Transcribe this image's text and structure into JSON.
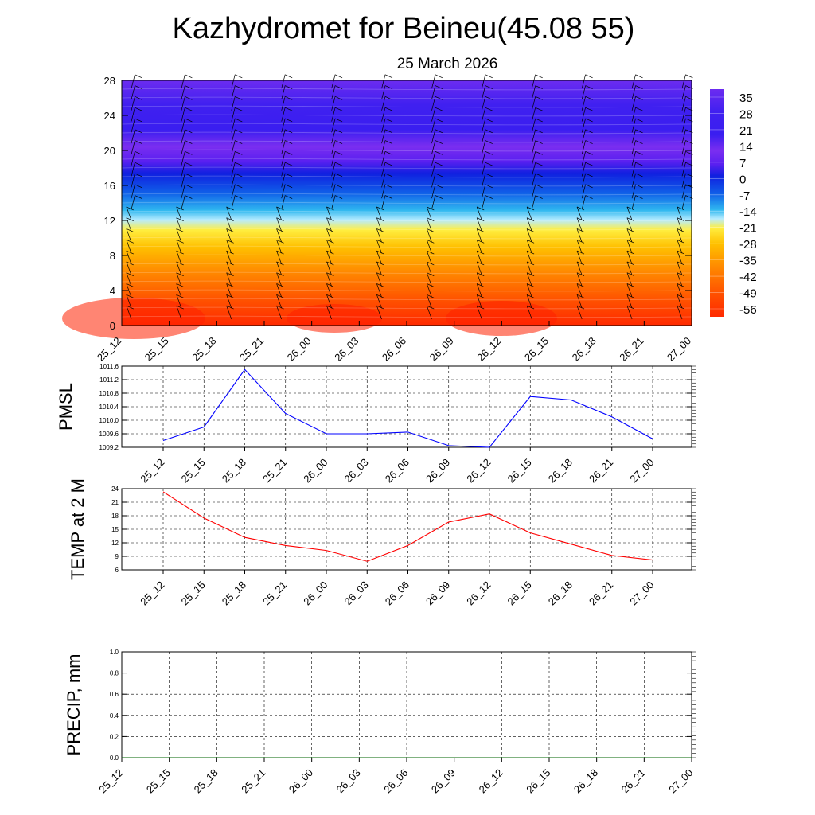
{
  "header": {
    "title": "Kazhydromet for Beineu(45.08 55)",
    "date": "25 March 2026"
  },
  "chart_data": [
    {
      "type": "heatmap",
      "name": "vertical profile (temperature cross-section with wind barbs)",
      "x": [
        "25_12",
        "25_15",
        "25_18",
        "25_21",
        "26_00",
        "26_03",
        "26_06",
        "26_09",
        "26_12",
        "26_15",
        "26_18",
        "26_21",
        "27_00"
      ],
      "y_ticks": [
        "0",
        "4",
        "8",
        "12",
        "16",
        "20",
        "24",
        "28"
      ],
      "ylim": [
        0,
        28
      ],
      "colorbar": {
        "labels": [
          "35",
          "28",
          "21",
          "14",
          "7",
          "0",
          "-7",
          "-14",
          "-21",
          "-28",
          "-35",
          "-42",
          "-49",
          "-56"
        ],
        "range": [
          -63,
          42
        ]
      }
    },
    {
      "type": "line",
      "name": "PMSL",
      "ylabel": "PMSL",
      "categories": [
        "25_12",
        "25_15",
        "25_18",
        "25_21",
        "26_00",
        "26_03",
        "26_06",
        "26_09",
        "26_12",
        "26_15",
        "26_18",
        "26_21",
        "27_00"
      ],
      "series": [
        {
          "name": "PMSL",
          "color": "#0000ff",
          "values": [
            1009.4,
            1009.8,
            1011.5,
            1010.2,
            1009.6,
            1009.6,
            1009.65,
            1009.25,
            1009.2,
            1010.7,
            1010.6,
            1010.1,
            1009.45
          ]
        }
      ],
      "y_ticks": [
        "1009.2",
        "1009.6",
        "1010.0",
        "1010.4",
        "1010.8",
        "1011.2",
        "1011.6"
      ],
      "ylim": [
        1009.2,
        1011.6
      ]
    },
    {
      "type": "line",
      "name": "TEMP at 2 M",
      "ylabel": "TEMP at 2 M",
      "categories": [
        "25_12",
        "25_15",
        "25_18",
        "25_21",
        "26_00",
        "26_03",
        "26_06",
        "26_09",
        "26_12",
        "26_15",
        "26_18",
        "26_21",
        "27_00"
      ],
      "series": [
        {
          "name": "TEMP at 2 M",
          "color": "#ff0000",
          "values": [
            23.3,
            17.5,
            13.2,
            11.4,
            10.3,
            7.9,
            11.4,
            16.6,
            18.4,
            14.2,
            11.7,
            9.2,
            8.2
          ]
        }
      ],
      "y_ticks": [
        "6",
        "9",
        "12",
        "15",
        "18",
        "21",
        "24"
      ],
      "ylim": [
        6,
        24
      ]
    },
    {
      "type": "line",
      "name": "PRECIP, mm",
      "ylabel": "PRECIP, mm",
      "categories": [
        "25_12",
        "25_15",
        "25_18",
        "25_21",
        "26_00",
        "26_03",
        "26_06",
        "26_09",
        "26_12",
        "26_15",
        "26_18",
        "26_21",
        "27_00"
      ],
      "series": [
        {
          "name": "PRECIP",
          "color": "#006400",
          "values": [
            0,
            0,
            0,
            0,
            0,
            0,
            0,
            0,
            0,
            0,
            0,
            0,
            0
          ]
        }
      ],
      "y_ticks": [
        "0.0",
        "0.2",
        "0.4",
        "0.6",
        "0.8",
        "1.0"
      ],
      "ylim": [
        0,
        1
      ]
    }
  ]
}
